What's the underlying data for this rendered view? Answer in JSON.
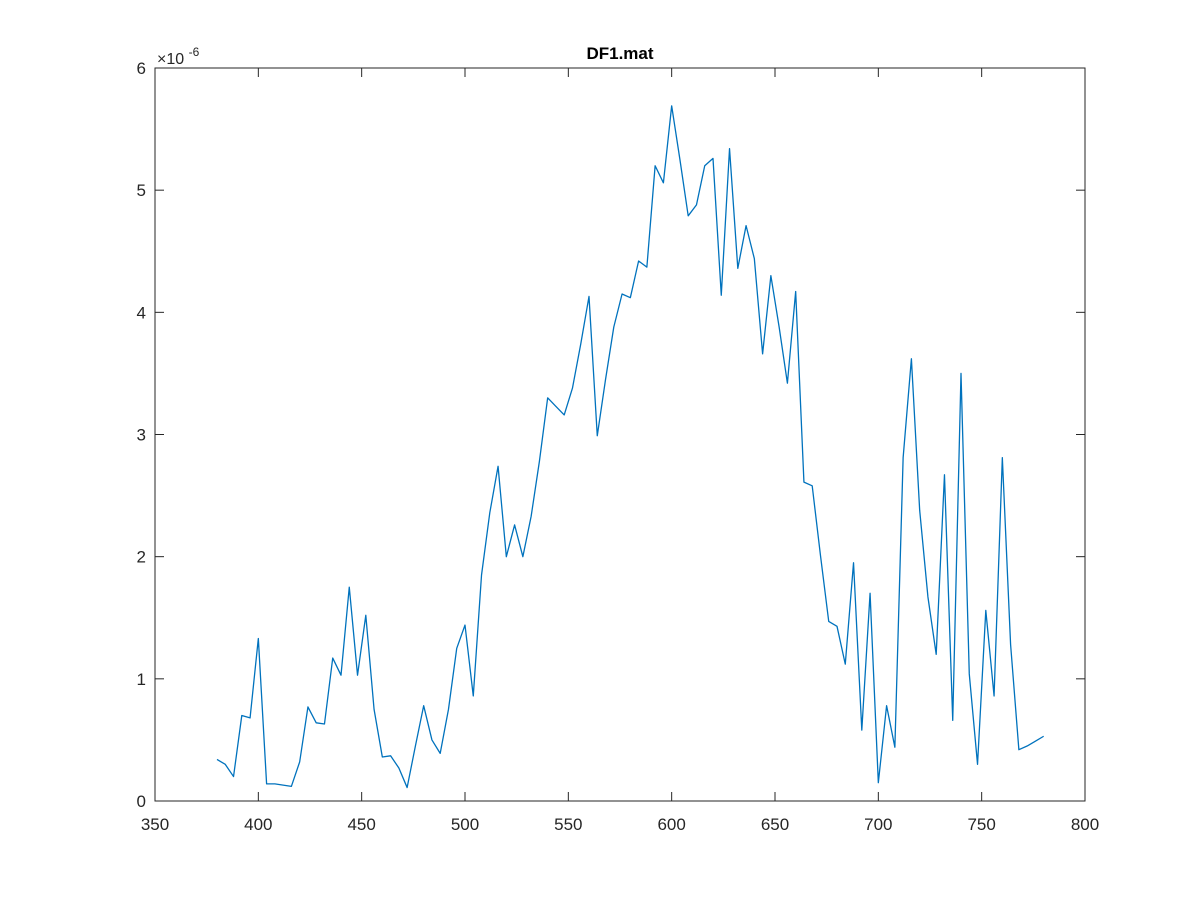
{
  "chart_data": {
    "type": "line",
    "title": "DF1.mat",
    "xlabel": "",
    "ylabel": "",
    "xlim": [
      350,
      800
    ],
    "ylim": [
      0,
      6e-06
    ],
    "xticks": [
      350,
      400,
      450,
      500,
      550,
      600,
      650,
      700,
      750,
      800
    ],
    "yticks": [
      0,
      1,
      2,
      3,
      4,
      5,
      6
    ],
    "y_exponent": {
      "base": "×10",
      "power": "-6"
    },
    "x_tick_labels": [
      "350",
      "400",
      "450",
      "500",
      "550",
      "600",
      "650",
      "700",
      "750",
      "800"
    ],
    "y_tick_labels": [
      "0",
      "1",
      "2",
      "3",
      "4",
      "5",
      "6"
    ],
    "grid": false,
    "legend": "none",
    "colors": {
      "line": "#0072BD",
      "axes": "#262626",
      "background": "#ffffff"
    },
    "series": [
      {
        "x": [
          380,
          384,
          388,
          392,
          396,
          400,
          404,
          408,
          412,
          416,
          420,
          424,
          428,
          432,
          436,
          440,
          444,
          448,
          452,
          456,
          460,
          464,
          468,
          472,
          476,
          480,
          484,
          488,
          492,
          496,
          500,
          504,
          508,
          512,
          516,
          520,
          524,
          528,
          532,
          536,
          540,
          544,
          548,
          552,
          556,
          560,
          564,
          568,
          572,
          576,
          580,
          584,
          588,
          592,
          596,
          600,
          604,
          608,
          612,
          616,
          620,
          624,
          628,
          632,
          636,
          640,
          644,
          648,
          652,
          656,
          660,
          664,
          668,
          672,
          676,
          680,
          684,
          688,
          692,
          696,
          700,
          704,
          708,
          712,
          716,
          720,
          724,
          728,
          732,
          736,
          740,
          744,
          748,
          752,
          756,
          760,
          764,
          768,
          772,
          776,
          780
        ],
        "y": [
          0.34,
          0.3,
          0.2,
          0.7,
          0.68,
          1.33,
          0.14,
          0.14,
          0.13,
          0.12,
          0.32,
          0.77,
          0.64,
          0.63,
          1.17,
          1.03,
          1.75,
          1.03,
          1.52,
          0.75,
          0.36,
          0.37,
          0.27,
          0.11,
          0.45,
          0.78,
          0.5,
          0.39,
          0.75,
          1.25,
          1.44,
          0.86,
          1.85,
          2.36,
          2.74,
          2.0,
          2.26,
          2.0,
          2.33,
          2.78,
          3.3,
          3.23,
          3.16,
          3.38,
          3.74,
          4.13,
          2.99,
          3.45,
          3.88,
          4.15,
          4.12,
          4.42,
          4.37,
          5.2,
          5.06,
          5.69,
          5.25,
          4.79,
          4.88,
          5.2,
          5.26,
          4.14,
          5.34,
          4.36,
          4.71,
          4.44,
          3.66,
          4.3,
          3.88,
          3.42,
          4.17,
          2.61,
          2.58,
          2.01,
          1.47,
          1.43,
          1.12,
          1.95,
          0.58,
          1.7,
          0.15,
          0.78,
          0.44,
          2.81,
          3.62,
          2.38,
          1.67,
          1.2,
          2.67,
          0.66,
          3.5,
          1.04,
          0.3,
          1.56,
          0.86,
          2.81,
          1.28,
          0.42,
          0.45,
          0.49,
          0.53
        ]
      }
    ]
  }
}
